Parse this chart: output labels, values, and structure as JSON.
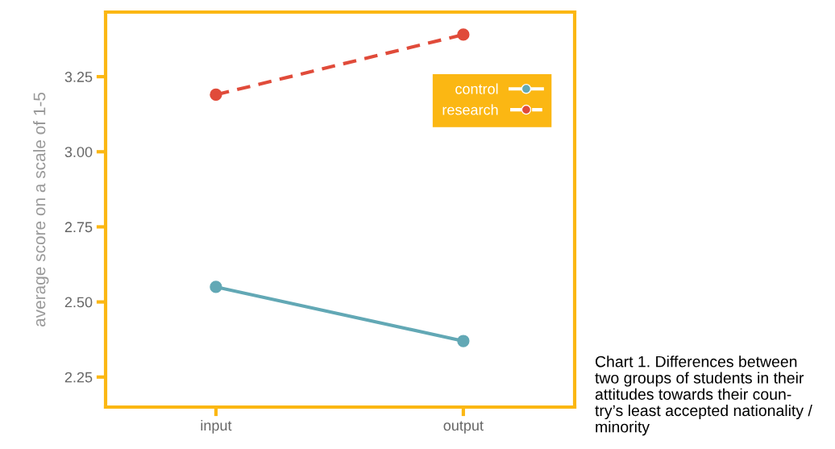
{
  "chart_data": {
    "type": "line",
    "ylabel": "average score on a scale of 1-5",
    "categories": [
      "input",
      "output"
    ],
    "series": [
      {
        "name": "control",
        "color": "#62a8b5",
        "values": [
          2.55,
          2.37
        ],
        "line_style": "solid"
      },
      {
        "name": "research",
        "color": "#e04b3a",
        "values": [
          3.19,
          3.39
        ],
        "line_style": "dashed"
      }
    ],
    "ylim": [
      2.15,
      3.465
    ],
    "yticks": [
      {
        "value": 2.25,
        "label": "2.25"
      },
      {
        "value": 2.5,
        "label": "2.50"
      },
      {
        "value": 2.75,
        "label": "2.75"
      },
      {
        "value": 3.0,
        "label": "3.00"
      },
      {
        "value": 3.25,
        "label": "3.25"
      }
    ],
    "marker": "circle",
    "grid": false,
    "legend": "top right",
    "annotations": [
      "Chart 1. Differences between\ntwo groups of students in their\nattitudes towards their coun-\ntry’s least accepted nationality /\nminority"
    ]
  }
}
